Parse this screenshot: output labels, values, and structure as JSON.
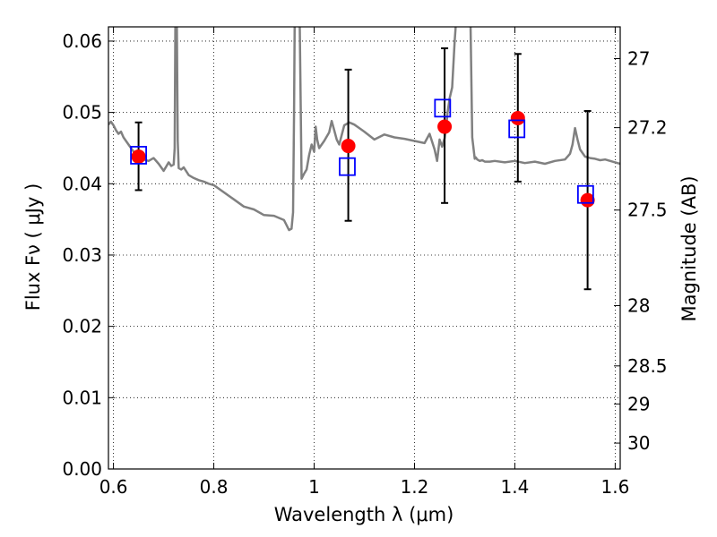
{
  "chart_data": {
    "type": "scatter",
    "xlabel": "Wavelength  λ (μm)",
    "ylabel": "Flux  Fν  ( μJy )",
    "y2label": "Magnitude (AB)",
    "xlim": [
      0.59,
      1.61
    ],
    "ylim": [
      0.0,
      0.062
    ],
    "grid": true,
    "grid_style": "dotted",
    "x_ticks": [
      {
        "value": 0.6,
        "label": "0.6"
      },
      {
        "value": 0.8,
        "label": "0.8"
      },
      {
        "value": 1.0,
        "label": "1"
      },
      {
        "value": 1.2,
        "label": "1.2"
      },
      {
        "value": 1.4,
        "label": "1.4"
      },
      {
        "value": 1.6,
        "label": "1.6"
      }
    ],
    "y_ticks": [
      {
        "value": 0.0,
        "label": "0.00"
      },
      {
        "value": 0.01,
        "label": "0.01"
      },
      {
        "value": 0.02,
        "label": "0.02"
      },
      {
        "value": 0.03,
        "label": "0.03"
      },
      {
        "value": 0.04,
        "label": "0.04"
      },
      {
        "value": 0.05,
        "label": "0.05"
      },
      {
        "value": 0.06,
        "label": "0.06"
      }
    ],
    "y2_ticks": [
      {
        "value": 27.0,
        "label": "27"
      },
      {
        "value": 27.2,
        "label": "27.2"
      },
      {
        "value": 27.5,
        "label": "27.5"
      },
      {
        "value": 28.0,
        "label": "28"
      },
      {
        "value": 28.5,
        "label": "28.5"
      },
      {
        "value": 29.0,
        "label": "29"
      },
      {
        "value": 30.0,
        "label": "30"
      }
    ],
    "model_spectrum": {
      "color": "#808080",
      "x": [
        0.59,
        0.595,
        0.6,
        0.605,
        0.61,
        0.615,
        0.62,
        0.63,
        0.64,
        0.65,
        0.66,
        0.67,
        0.68,
        0.69,
        0.7,
        0.705,
        0.71,
        0.715,
        0.72,
        0.722,
        0.724,
        0.726,
        0.728,
        0.73,
        0.735,
        0.74,
        0.75,
        0.76,
        0.77,
        0.78,
        0.79,
        0.8,
        0.82,
        0.84,
        0.86,
        0.88,
        0.9,
        0.92,
        0.94,
        0.945,
        0.95,
        0.955,
        0.958,
        0.96,
        0.962,
        0.965,
        0.97,
        0.975,
        0.98,
        0.985,
        0.99,
        0.995,
        1.0,
        1.003,
        1.006,
        1.01,
        1.02,
        1.03,
        1.035,
        1.04,
        1.045,
        1.05,
        1.06,
        1.07,
        1.08,
        1.09,
        1.1,
        1.12,
        1.14,
        1.16,
        1.18,
        1.2,
        1.22,
        1.23,
        1.24,
        1.245,
        1.25,
        1.255,
        1.26,
        1.263,
        1.266,
        1.27,
        1.275,
        1.28,
        1.29,
        1.3,
        1.305,
        1.31,
        1.315,
        1.32,
        1.322,
        1.325,
        1.33,
        1.335,
        1.34,
        1.35,
        1.36,
        1.38,
        1.4,
        1.42,
        1.44,
        1.46,
        1.48,
        1.5,
        1.51,
        1.515,
        1.52,
        1.525,
        1.53,
        1.535,
        1.54,
        1.55,
        1.56,
        1.57,
        1.58,
        1.59,
        1.6,
        1.61
      ],
      "y": [
        0.0483,
        0.0487,
        0.0482,
        0.0475,
        0.047,
        0.0473,
        0.0465,
        0.0455,
        0.0445,
        0.0438,
        0.0434,
        0.0432,
        0.0436,
        0.0428,
        0.0418,
        0.0424,
        0.043,
        0.0425,
        0.0427,
        0.045,
        0.07,
        0.066,
        0.046,
        0.0422,
        0.042,
        0.0423,
        0.0412,
        0.0408,
        0.0405,
        0.0403,
        0.04,
        0.0398,
        0.0388,
        0.0378,
        0.0368,
        0.0364,
        0.0356,
        0.0355,
        0.0349,
        0.0342,
        0.0335,
        0.0337,
        0.036,
        0.05,
        0.07,
        0.07,
        0.07,
        0.0407,
        0.0414,
        0.042,
        0.044,
        0.0455,
        0.0445,
        0.048,
        0.0462,
        0.045,
        0.046,
        0.0472,
        0.0488,
        0.0475,
        0.0462,
        0.0455,
        0.0482,
        0.0486,
        0.0483,
        0.0478,
        0.0473,
        0.0462,
        0.0469,
        0.0465,
        0.0463,
        0.046,
        0.0457,
        0.047,
        0.0448,
        0.0432,
        0.0462,
        0.0452,
        0.0464,
        0.0478,
        0.05,
        0.052,
        0.0535,
        0.06,
        0.07,
        0.07,
        0.07,
        0.07,
        0.0465,
        0.0435,
        0.0437,
        0.0434,
        0.0432,
        0.0433,
        0.0431,
        0.0431,
        0.0432,
        0.043,
        0.0432,
        0.0429,
        0.0431,
        0.0428,
        0.0432,
        0.0434,
        0.0442,
        0.0455,
        0.0478,
        0.0462,
        0.0448,
        0.0443,
        0.0438,
        0.0436,
        0.0435,
        0.0433,
        0.0434,
        0.0432,
        0.043,
        0.0428
      ]
    },
    "observed": {
      "color": "#ff0000",
      "marker": "circle",
      "points": [
        {
          "x": 0.65,
          "y": 0.0438,
          "yerr": [
            0.0391,
            0.0486
          ]
        },
        {
          "x": 1.068,
          "y": 0.0453,
          "yerr": [
            0.0348,
            0.056
          ]
        },
        {
          "x": 1.26,
          "y": 0.048,
          "yerr": [
            0.0373,
            0.059
          ]
        },
        {
          "x": 1.406,
          "y": 0.0492,
          "yerr": [
            0.0403,
            0.0582
          ]
        },
        {
          "x": 1.545,
          "y": 0.0377,
          "yerr": [
            0.0252,
            0.0502
          ]
        }
      ]
    },
    "model_photometry": {
      "color": "#0000ff",
      "marker": "open-square",
      "points": [
        {
          "x": 0.65,
          "y": 0.044
        },
        {
          "x": 1.066,
          "y": 0.0424
        },
        {
          "x": 1.256,
          "y": 0.0506
        },
        {
          "x": 1.404,
          "y": 0.0477
        },
        {
          "x": 1.541,
          "y": 0.0385
        }
      ]
    }
  }
}
